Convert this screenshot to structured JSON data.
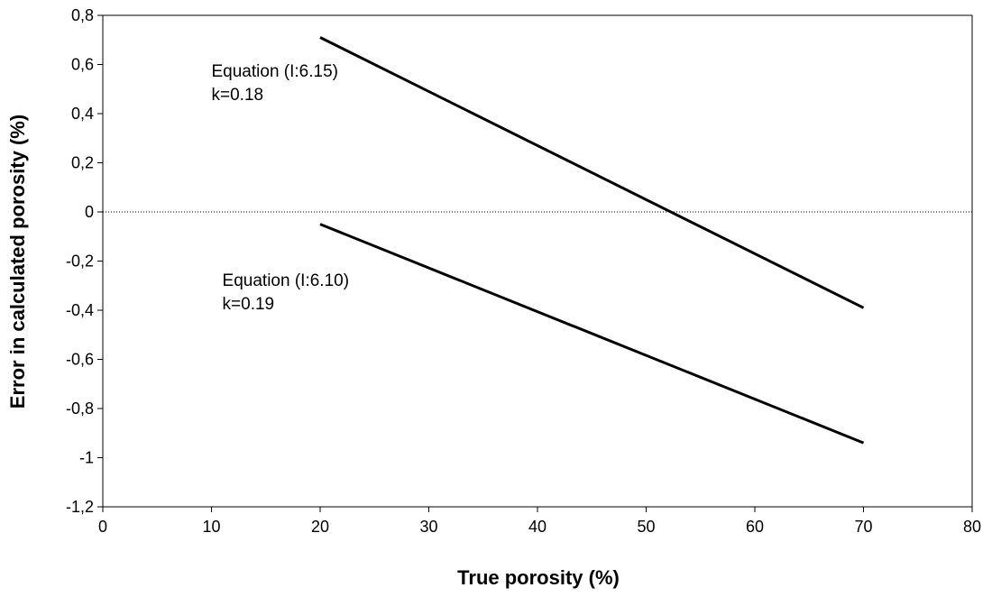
{
  "chart_data": {
    "type": "line",
    "title": "",
    "xlabel": "True porosity (%)",
    "ylabel": "Error in calculated porosity (%)",
    "xlim": [
      0,
      80
    ],
    "ylim": [
      -1.2,
      0.8
    ],
    "x_ticks": [
      0,
      10,
      20,
      30,
      40,
      50,
      60,
      70,
      80
    ],
    "x_tick_labels": [
      "0",
      "10",
      "20",
      "30",
      "40",
      "50",
      "60",
      "70",
      "80"
    ],
    "y_ticks": [
      0.8,
      0.6,
      0.4,
      0.2,
      0,
      -0.2,
      -0.4,
      -0.6,
      -0.8,
      -1,
      -1.2
    ],
    "y_tick_labels": [
      "0,8",
      "0,6",
      "0,4",
      "0,2",
      "0",
      "-0,2",
      "-0,4",
      "-0,6",
      "-0,8",
      "-1",
      "-1,2"
    ],
    "grid": false,
    "zero_line": {
      "y": 0,
      "style": "dotted"
    },
    "series": [
      {
        "x": [
          20,
          70
        ],
        "y": [
          0.71,
          -0.39
        ],
        "color": "#000000"
      },
      {
        "x": [
          20,
          70
        ],
        "y": [
          -0.05,
          -0.94
        ],
        "color": "#000000"
      }
    ],
    "annotations": [
      {
        "lines": [
          "Equation (I:6.15)",
          "k=0.18"
        ],
        "x": 10,
        "y": 0.55
      },
      {
        "lines": [
          "Equation (I:6.10)",
          "k=0.19"
        ],
        "x": 11,
        "y": -0.3
      }
    ]
  }
}
